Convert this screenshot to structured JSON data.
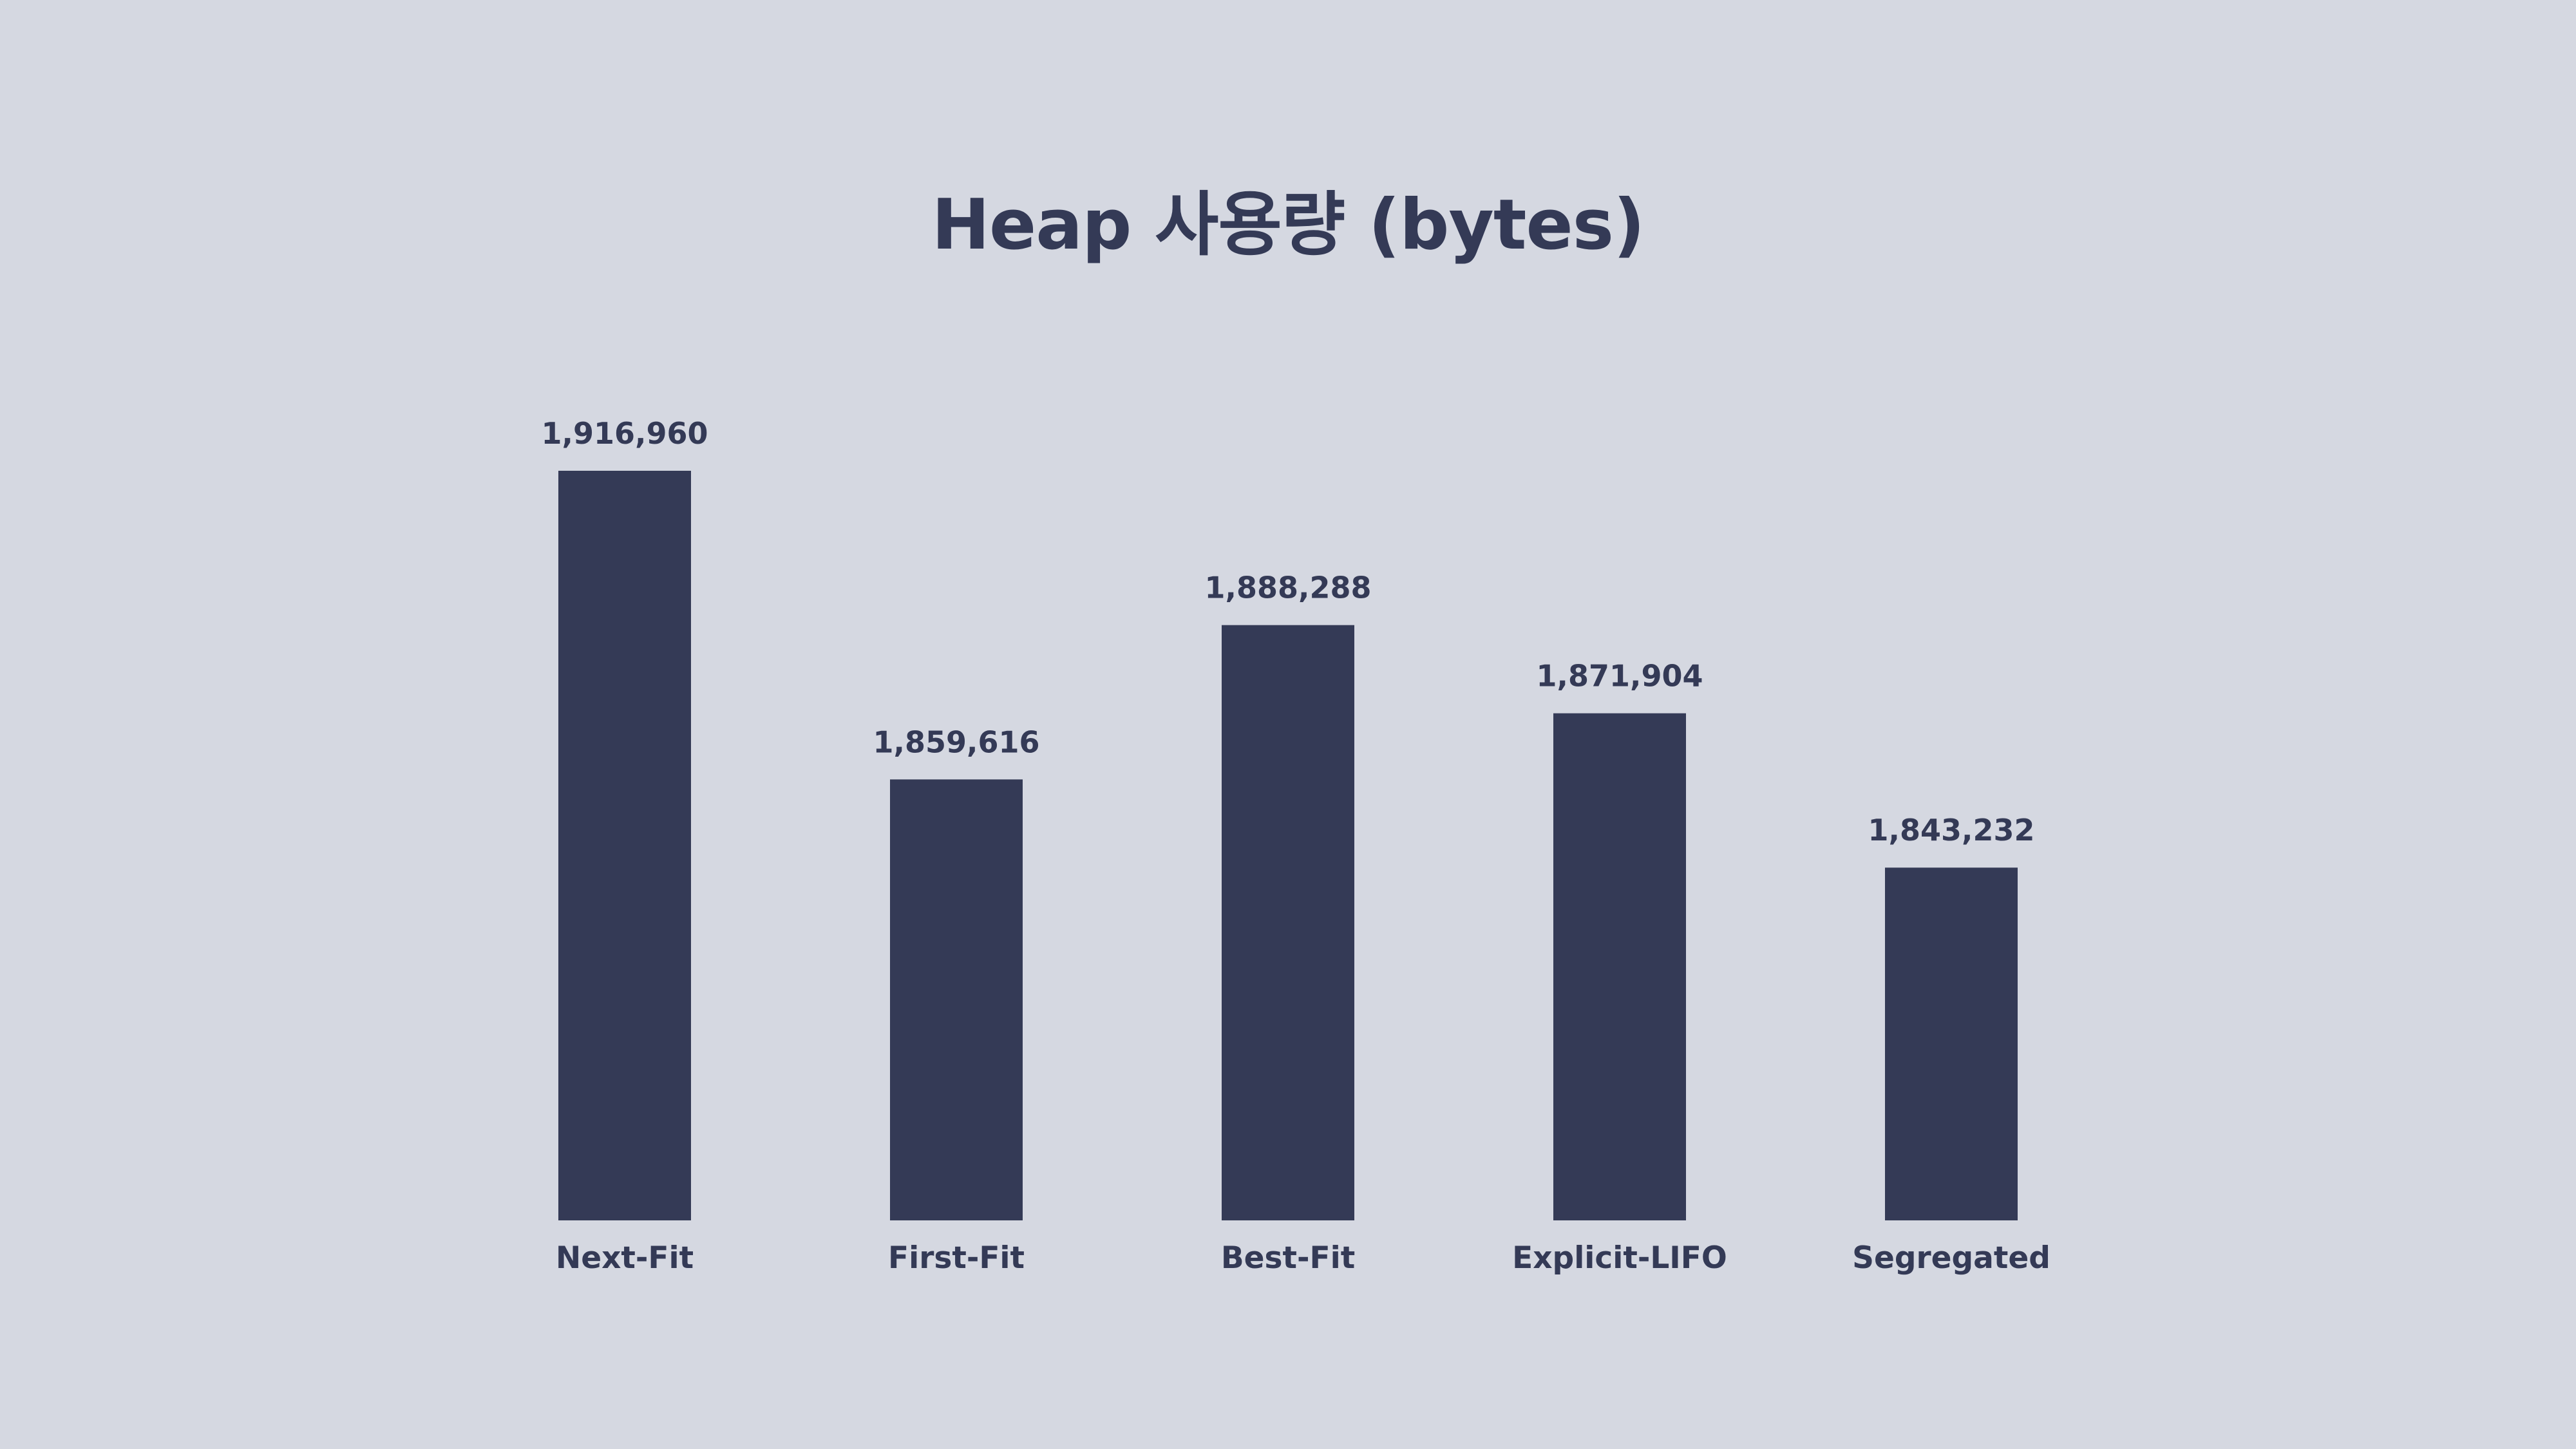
{
  "chart_data": {
    "type": "bar",
    "title": "Heap 사용량 (bytes)",
    "xlabel": "",
    "ylabel": "",
    "categories": [
      "Next-Fit",
      "First-Fit",
      "Best-Fit",
      "Explicit-LIFO",
      "Segregated"
    ],
    "values": [
      1916960,
      1859616,
      1888288,
      1871904,
      1843232
    ],
    "value_labels": [
      "1,916,960",
      "1,859,616",
      "1,888,288",
      "1,871,904",
      "1,843,232"
    ],
    "ylim": [
      1777696,
      1916960
    ],
    "grid": false,
    "legend": "none",
    "colors": {
      "background": "#D5D8E1",
      "bar": "#343A56",
      "text": "#343A56"
    }
  }
}
